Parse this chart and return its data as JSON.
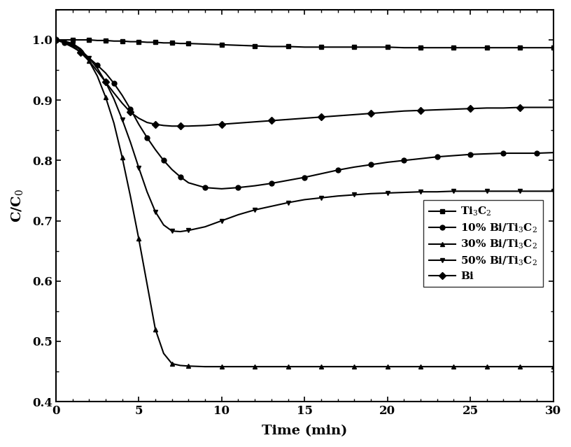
{
  "title": "",
  "xlabel": "Time (min)",
  "ylabel": "C/C$_0$",
  "xlim": [
    0,
    30
  ],
  "ylim": [
    0.4,
    1.05
  ],
  "yticks": [
    0.4,
    0.5,
    0.6,
    0.7,
    0.8,
    0.9,
    1.0
  ],
  "xticks": [
    0,
    5,
    10,
    15,
    20,
    25,
    30
  ],
  "series": [
    {
      "label": "Ti$_3$C$_2$",
      "marker": "s",
      "color": "#000000",
      "x": [
        0,
        0.5,
        1,
        1.5,
        2,
        2.5,
        3,
        3.5,
        4,
        4.5,
        5,
        5.5,
        6,
        6.5,
        7,
        7.5,
        8,
        9,
        10,
        11,
        12,
        13,
        14,
        15,
        16,
        17,
        18,
        19,
        20,
        21,
        22,
        23,
        24,
        25,
        26,
        27,
        28,
        29,
        30
      ],
      "y": [
        1.0,
        1.0,
        1.0,
        1.0,
        1.0,
        0.999,
        0.999,
        0.998,
        0.998,
        0.997,
        0.997,
        0.996,
        0.996,
        0.995,
        0.995,
        0.994,
        0.994,
        0.993,
        0.992,
        0.991,
        0.99,
        0.989,
        0.989,
        0.988,
        0.988,
        0.988,
        0.988,
        0.988,
        0.988,
        0.987,
        0.987,
        0.987,
        0.987,
        0.987,
        0.987,
        0.987,
        0.987,
        0.987,
        0.987
      ]
    },
    {
      "label": "10% Bi/Ti$_3$C$_2$",
      "marker": "o",
      "color": "#000000",
      "x": [
        0,
        0.5,
        1,
        1.5,
        2,
        2.5,
        3,
        3.5,
        4,
        4.5,
        5,
        5.5,
        6,
        6.5,
        7,
        7.5,
        8,
        9,
        10,
        11,
        12,
        13,
        14,
        15,
        16,
        17,
        18,
        19,
        20,
        21,
        22,
        23,
        24,
        25,
        26,
        27,
        28,
        29,
        30
      ],
      "y": [
        1.0,
        0.995,
        0.988,
        0.98,
        0.97,
        0.958,
        0.945,
        0.928,
        0.908,
        0.885,
        0.86,
        0.838,
        0.818,
        0.8,
        0.785,
        0.773,
        0.763,
        0.755,
        0.753,
        0.755,
        0.758,
        0.762,
        0.767,
        0.772,
        0.778,
        0.784,
        0.789,
        0.793,
        0.797,
        0.8,
        0.803,
        0.806,
        0.808,
        0.81,
        0.811,
        0.812,
        0.812,
        0.812,
        0.813
      ]
    },
    {
      "label": "30% Bi/Ti$_3$C$_2$",
      "marker": "^",
      "color": "#000000",
      "x": [
        0,
        0.5,
        1,
        1.5,
        2,
        2.5,
        3,
        3.5,
        4,
        4.5,
        5,
        5.5,
        6,
        6.5,
        7,
        7.5,
        8,
        9,
        10,
        11,
        12,
        13,
        14,
        15,
        16,
        17,
        18,
        19,
        20,
        21,
        22,
        23,
        24,
        25,
        26,
        27,
        28,
        29,
        30
      ],
      "y": [
        1.0,
        0.998,
        0.994,
        0.985,
        0.965,
        0.94,
        0.905,
        0.862,
        0.805,
        0.74,
        0.67,
        0.595,
        0.52,
        0.48,
        0.463,
        0.46,
        0.459,
        0.458,
        0.458,
        0.458,
        0.458,
        0.458,
        0.458,
        0.458,
        0.458,
        0.458,
        0.458,
        0.458,
        0.458,
        0.458,
        0.458,
        0.458,
        0.458,
        0.458,
        0.458,
        0.458,
        0.458,
        0.458,
        0.458
      ]
    },
    {
      "label": "50% Bi/Ti$_3$C$_2$",
      "marker": "v",
      "color": "#000000",
      "x": [
        0,
        0.5,
        1,
        1.5,
        2,
        2.5,
        3,
        3.5,
        4,
        4.5,
        5,
        5.5,
        6,
        6.5,
        7,
        7.5,
        8,
        9,
        10,
        11,
        12,
        13,
        14,
        15,
        16,
        17,
        18,
        19,
        20,
        21,
        22,
        23,
        24,
        25,
        26,
        27,
        28,
        29,
        30
      ],
      "y": [
        1.0,
        0.997,
        0.992,
        0.983,
        0.97,
        0.953,
        0.93,
        0.902,
        0.868,
        0.83,
        0.788,
        0.748,
        0.715,
        0.693,
        0.683,
        0.682,
        0.684,
        0.69,
        0.7,
        0.71,
        0.718,
        0.724,
        0.73,
        0.735,
        0.738,
        0.741,
        0.743,
        0.745,
        0.746,
        0.747,
        0.748,
        0.748,
        0.749,
        0.749,
        0.749,
        0.749,
        0.749,
        0.749,
        0.749
      ]
    },
    {
      "label": "Bi",
      "marker": "D",
      "color": "#000000",
      "x": [
        0,
        0.5,
        1,
        1.5,
        2,
        2.5,
        3,
        3.5,
        4,
        4.5,
        5,
        5.5,
        6,
        6.5,
        7,
        7.5,
        8,
        9,
        10,
        11,
        12,
        13,
        14,
        15,
        16,
        17,
        18,
        19,
        20,
        21,
        22,
        23,
        24,
        25,
        26,
        27,
        28,
        29,
        30
      ],
      "y": [
        1.0,
        0.997,
        0.99,
        0.979,
        0.965,
        0.948,
        0.93,
        0.912,
        0.895,
        0.88,
        0.87,
        0.863,
        0.86,
        0.858,
        0.857,
        0.857,
        0.857,
        0.858,
        0.86,
        0.862,
        0.864,
        0.866,
        0.868,
        0.87,
        0.872,
        0.874,
        0.876,
        0.878,
        0.88,
        0.882,
        0.883,
        0.884,
        0.885,
        0.886,
        0.887,
        0.887,
        0.888,
        0.888,
        0.888
      ]
    }
  ],
  "markersize": 5,
  "linewidth": 1.5,
  "background_color": "#ffffff"
}
